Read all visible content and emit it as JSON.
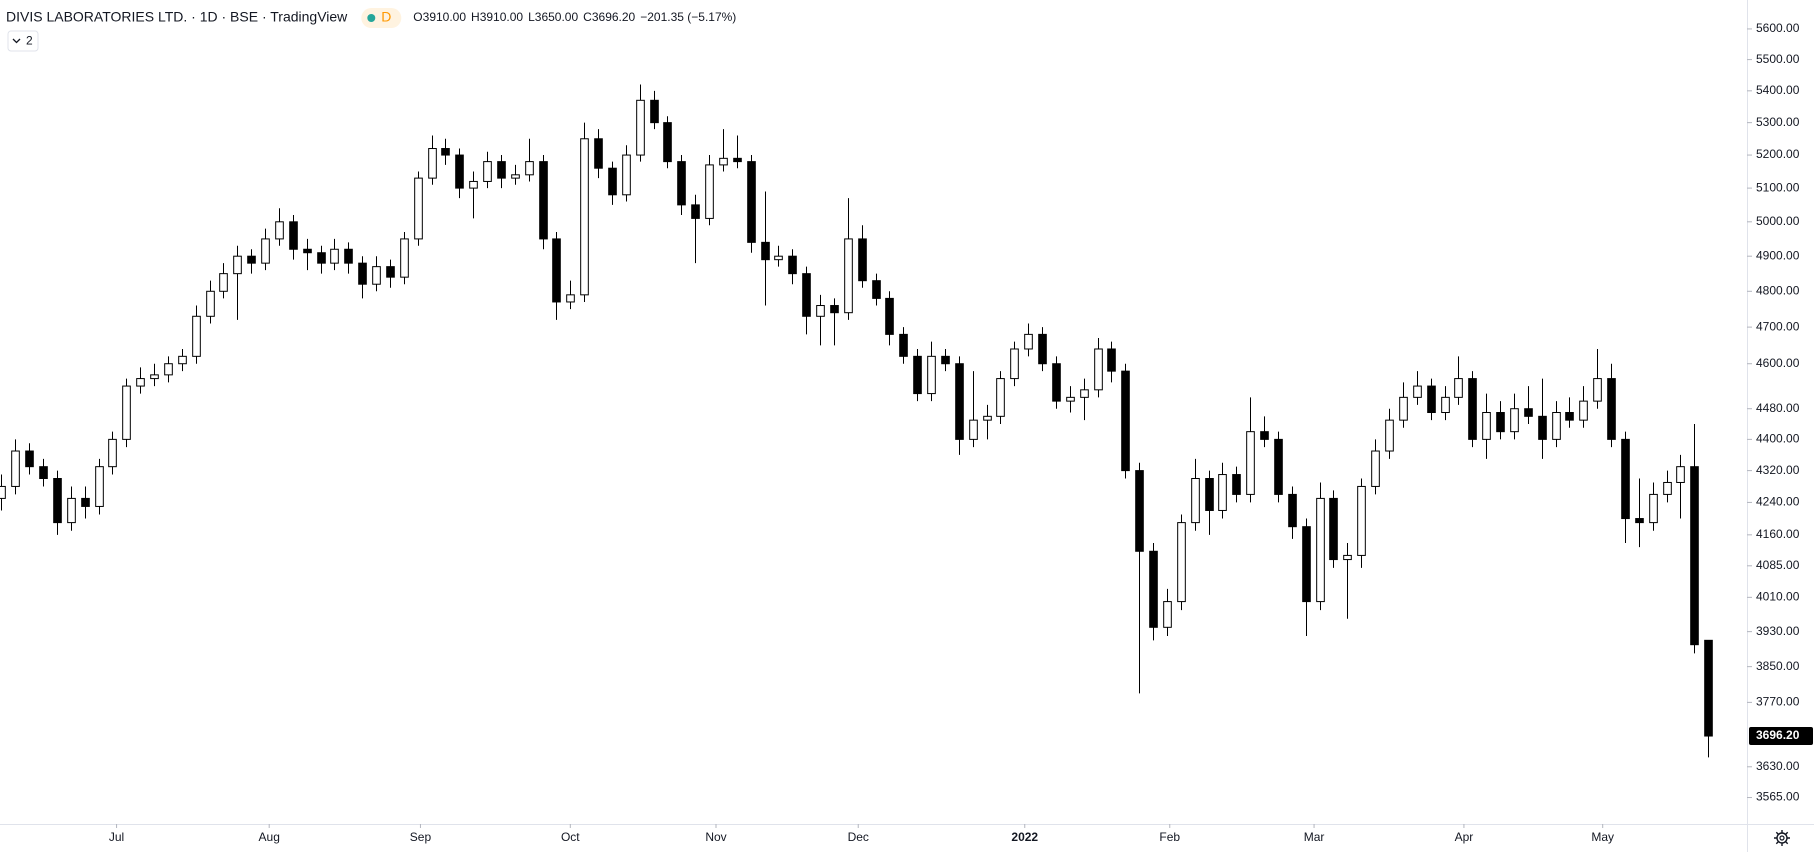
{
  "header": {
    "symbol": "DIVIS LABORATORIES LTD. · 1D · BSE · TradingView",
    "interval_badge": "D",
    "ohlc": [
      {
        "key": "O",
        "value": "3910.00"
      },
      {
        "key": "H",
        "value": "3910.00"
      },
      {
        "key": "L",
        "value": "3650.00"
      },
      {
        "key": "C",
        "value": "3696.20"
      }
    ],
    "change": "−201.35 (−5.17%)",
    "indicator_button": "2"
  },
  "chart_data": {
    "type": "candlestick",
    "log_scale": true,
    "grid": false,
    "up_color": "#ffffff",
    "down_color": "#000000",
    "outline_color": "#000000",
    "ylim": [
      3510,
      5696
    ],
    "yticks": [
      {
        "value": 5600,
        "label": "5600.00"
      },
      {
        "value": 5500,
        "label": "5500.00"
      },
      {
        "value": 5400,
        "label": "5400.00"
      },
      {
        "value": 5300,
        "label": "5300.00"
      },
      {
        "value": 5200,
        "label": "5200.00"
      },
      {
        "value": 5100,
        "label": "5100.00"
      },
      {
        "value": 5000,
        "label": "5000.00"
      },
      {
        "value": 4900,
        "label": "4900.00"
      },
      {
        "value": 4800,
        "label": "4800.00"
      },
      {
        "value": 4700,
        "label": "4700.00"
      },
      {
        "value": 4600,
        "label": "4600.00"
      },
      {
        "value": 4480,
        "label": "4480.00"
      },
      {
        "value": 4400,
        "label": "4400.00"
      },
      {
        "value": 4320,
        "label": "4320.00"
      },
      {
        "value": 4240,
        "label": "4240.00"
      },
      {
        "value": 4160,
        "label": "4160.00"
      },
      {
        "value": 4085,
        "label": "4085.00"
      },
      {
        "value": 4010,
        "label": "4010.00"
      },
      {
        "value": 3930,
        "label": "3930.00"
      },
      {
        "value": 3850,
        "label": "3850.00"
      },
      {
        "value": 3770,
        "label": "3770.00"
      },
      {
        "value": 3630,
        "label": "3630.00"
      },
      {
        "value": 3565,
        "label": "3565.00"
      }
    ],
    "xlim": [
      -0.1,
      125.8
    ],
    "xticks": [
      {
        "value": 8.3,
        "label": "Jul"
      },
      {
        "value": 19.3,
        "label": "Aug"
      },
      {
        "value": 30.2,
        "label": "Sep"
      },
      {
        "value": 41,
        "label": "Oct"
      },
      {
        "value": 51.5,
        "label": "Nov"
      },
      {
        "value": 61.75,
        "label": "Dec"
      },
      {
        "value": 73.75,
        "label": "2022"
      },
      {
        "value": 84.2,
        "label": "Feb"
      },
      {
        "value": 94.6,
        "label": "Mar"
      },
      {
        "value": 105.4,
        "label": "Apr"
      },
      {
        "value": 115.4,
        "label": "May"
      }
    ],
    "last_price": 3696.2,
    "last_price_label": "3696.20",
    "candles": [
      [
        4250,
        4310,
        4220,
        4280
      ],
      [
        4280,
        4400,
        4260,
        4370
      ],
      [
        4370,
        4390,
        4310,
        4330
      ],
      [
        4330,
        4350,
        4280,
        4300
      ],
      [
        4300,
        4320,
        4160,
        4190
      ],
      [
        4190,
        4280,
        4170,
        4250
      ],
      [
        4250,
        4280,
        4200,
        4230
      ],
      [
        4230,
        4350,
        4210,
        4330
      ],
      [
        4330,
        4420,
        4310,
        4400
      ],
      [
        4400,
        4560,
        4380,
        4540
      ],
      [
        4540,
        4590,
        4520,
        4560
      ],
      [
        4560,
        4600,
        4540,
        4570
      ],
      [
        4570,
        4620,
        4550,
        4600
      ],
      [
        4600,
        4640,
        4580,
        4620
      ],
      [
        4620,
        4760,
        4600,
        4730
      ],
      [
        4730,
        4830,
        4710,
        4800
      ],
      [
        4800,
        4880,
        4780,
        4850
      ],
      [
        4850,
        4930,
        4720,
        4900
      ],
      [
        4900,
        4920,
        4850,
        4880
      ],
      [
        4880,
        4980,
        4860,
        4950
      ],
      [
        4950,
        5040,
        4930,
        5000
      ],
      [
        5000,
        5020,
        4890,
        4920
      ],
      [
        4920,
        4950,
        4860,
        4910
      ],
      [
        4910,
        4930,
        4850,
        4880
      ],
      [
        4880,
        4950,
        4860,
        4920
      ],
      [
        4920,
        4940,
        4850,
        4880
      ],
      [
        4880,
        4900,
        4780,
        4820
      ],
      [
        4820,
        4900,
        4800,
        4870
      ],
      [
        4870,
        4890,
        4810,
        4840
      ],
      [
        4840,
        4970,
        4820,
        4950
      ],
      [
        4950,
        5150,
        4930,
        5130
      ],
      [
        5130,
        5260,
        5110,
        5220
      ],
      [
        5220,
        5250,
        5170,
        5200
      ],
      [
        5200,
        5220,
        5070,
        5100
      ],
      [
        5100,
        5150,
        5010,
        5120
      ],
      [
        5120,
        5210,
        5100,
        5180
      ],
      [
        5180,
        5200,
        5100,
        5130
      ],
      [
        5130,
        5170,
        5110,
        5140
      ],
      [
        5140,
        5250,
        5120,
        5180
      ],
      [
        5180,
        5200,
        4920,
        4950
      ],
      [
        4950,
        4970,
        4720,
        4770
      ],
      [
        4770,
        4830,
        4750,
        4790
      ],
      [
        4790,
        5300,
        4770,
        5250
      ],
      [
        5250,
        5280,
        5130,
        5160
      ],
      [
        5160,
        5180,
        5050,
        5080
      ],
      [
        5080,
        5230,
        5060,
        5200
      ],
      [
        5200,
        5420,
        5180,
        5370
      ],
      [
        5370,
        5400,
        5280,
        5300
      ],
      [
        5300,
        5320,
        5160,
        5180
      ],
      [
        5180,
        5200,
        5020,
        5050
      ],
      [
        5050,
        5080,
        4880,
        5010
      ],
      [
        5010,
        5200,
        4990,
        5170
      ],
      [
        5170,
        5280,
        5150,
        5190
      ],
      [
        5190,
        5260,
        5160,
        5180
      ],
      [
        5180,
        5200,
        4910,
        4940
      ],
      [
        4940,
        5090,
        4760,
        4890
      ],
      [
        4890,
        4930,
        4870,
        4900
      ],
      [
        4900,
        4920,
        4820,
        4850
      ],
      [
        4850,
        4870,
        4680,
        4730
      ],
      [
        4730,
        4790,
        4650,
        4760
      ],
      [
        4760,
        4780,
        4650,
        4740
      ],
      [
        4740,
        5070,
        4720,
        4950
      ],
      [
        4950,
        4990,
        4810,
        4830
      ],
      [
        4830,
        4850,
        4760,
        4780
      ],
      [
        4780,
        4800,
        4650,
        4680
      ],
      [
        4680,
        4700,
        4600,
        4620
      ],
      [
        4620,
        4640,
        4500,
        4520
      ],
      [
        4520,
        4660,
        4500,
        4620
      ],
      [
        4620,
        4640,
        4580,
        4600
      ],
      [
        4600,
        4620,
        4360,
        4400
      ],
      [
        4400,
        4580,
        4380,
        4450
      ],
      [
        4450,
        4490,
        4400,
        4460
      ],
      [
        4460,
        4580,
        4440,
        4560
      ],
      [
        4560,
        4660,
        4540,
        4640
      ],
      [
        4640,
        4710,
        4620,
        4680
      ],
      [
        4680,
        4700,
        4580,
        4600
      ],
      [
        4600,
        4620,
        4480,
        4500
      ],
      [
        4500,
        4540,
        4470,
        4510
      ],
      [
        4510,
        4560,
        4450,
        4530
      ],
      [
        4530,
        4670,
        4510,
        4640
      ],
      [
        4640,
        4660,
        4550,
        4580
      ],
      [
        4580,
        4600,
        4300,
        4320
      ],
      [
        4320,
        4340,
        3790,
        4120
      ],
      [
        4120,
        4140,
        3910,
        3940
      ],
      [
        3940,
        4030,
        3920,
        4000
      ],
      [
        4000,
        4210,
        3980,
        4190
      ],
      [
        4190,
        4350,
        4170,
        4300
      ],
      [
        4300,
        4320,
        4160,
        4220
      ],
      [
        4220,
        4340,
        4200,
        4310
      ],
      [
        4310,
        4330,
        4240,
        4260
      ],
      [
        4260,
        4510,
        4240,
        4420
      ],
      [
        4420,
        4460,
        4380,
        4400
      ],
      [
        4400,
        4420,
        4240,
        4260
      ],
      [
        4260,
        4280,
        4150,
        4180
      ],
      [
        4180,
        4200,
        3920,
        4000
      ],
      [
        4000,
        4290,
        3980,
        4250
      ],
      [
        4250,
        4270,
        4080,
        4100
      ],
      [
        4100,
        4140,
        3960,
        4110
      ],
      [
        4110,
        4300,
        4080,
        4280
      ],
      [
        4280,
        4400,
        4260,
        4370
      ],
      [
        4370,
        4480,
        4350,
        4450
      ],
      [
        4450,
        4550,
        4430,
        4510
      ],
      [
        4510,
        4580,
        4490,
        4540
      ],
      [
        4540,
        4560,
        4450,
        4470
      ],
      [
        4470,
        4540,
        4450,
        4510
      ],
      [
        4510,
        4620,
        4490,
        4560
      ],
      [
        4560,
        4580,
        4380,
        4400
      ],
      [
        4400,
        4520,
        4350,
        4470
      ],
      [
        4470,
        4500,
        4400,
        4420
      ],
      [
        4420,
        4520,
        4400,
        4480
      ],
      [
        4480,
        4540,
        4440,
        4460
      ],
      [
        4460,
        4560,
        4350,
        4400
      ],
      [
        4400,
        4500,
        4380,
        4470
      ],
      [
        4470,
        4510,
        4430,
        4450
      ],
      [
        4450,
        4540,
        4430,
        4500
      ],
      [
        4500,
        4640,
        4480,
        4560
      ],
      [
        4560,
        4600,
        4380,
        4400
      ],
      [
        4400,
        4420,
        4140,
        4200
      ],
      [
        4200,
        4300,
        4130,
        4190
      ],
      [
        4190,
        4290,
        4170,
        4260
      ],
      [
        4260,
        4320,
        4240,
        4290
      ],
      [
        4290,
        4360,
        4200,
        4330
      ],
      [
        4330,
        4440,
        3880,
        3900
      ],
      [
        3910,
        3910,
        3650,
        3696.2
      ]
    ]
  }
}
